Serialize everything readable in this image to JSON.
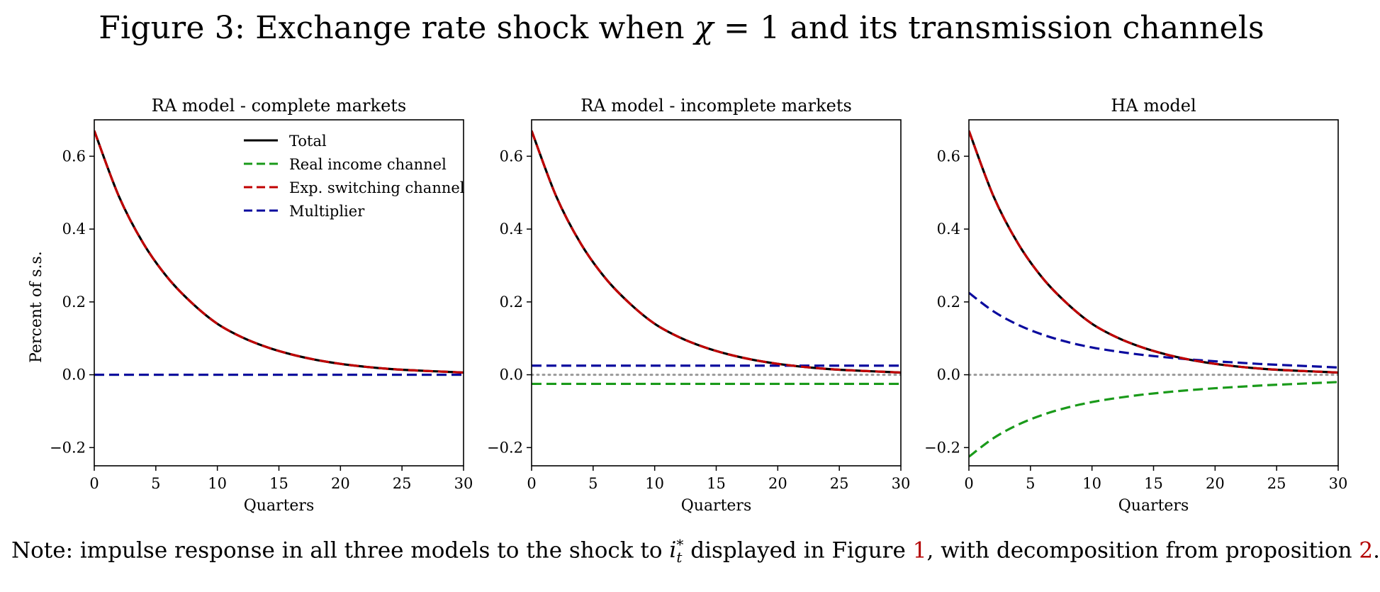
{
  "figure": {
    "title_prefix": "Figure 3: Exchange rate shock when ",
    "title_symbol": "χ",
    "title_equation": " = 1",
    "title_suffix": " and its transmission channels"
  },
  "note": {
    "prefix": "Note: impulse response in all three models to the shock to ",
    "symbol": "i",
    "symbol_sub": "t",
    "symbol_sup": "*",
    "middle": " displayed in Figure ",
    "figure_ref": "1",
    "middle2": ", with decomposition from proposition ",
    "prop_ref": "2",
    "suffix": "."
  },
  "colors": {
    "total": "#000000",
    "real_income": "#1a9a1a",
    "exp_switching": "#c00000",
    "multiplier": "#0a0a9e",
    "zero_line": "#999999",
    "ref_link": "#b30000"
  },
  "chart_data": [
    {
      "type": "line",
      "title": "RA model - complete markets",
      "xlabel": "Quarters",
      "ylabel": "Percent of s.s.",
      "xlim": [
        0,
        30
      ],
      "ylim": [
        -0.25,
        0.7
      ],
      "xticks": [
        0,
        5,
        10,
        15,
        20,
        25,
        30
      ],
      "yticks": [
        -0.2,
        0.0,
        0.2,
        0.4,
        0.6
      ],
      "ytick_labels": [
        "−0.2",
        "0.0",
        "0.2",
        "0.4",
        "0.6"
      ],
      "legend": "upper-center",
      "legend_entries": [
        "Total",
        "Real income channel",
        "Exp. switching channel",
        "Multiplier"
      ],
      "x": [
        0,
        2,
        4,
        6,
        8,
        10,
        12,
        14,
        16,
        18,
        20,
        22,
        24,
        26,
        28,
        30
      ],
      "series": [
        {
          "name": "Total",
          "style": "solid",
          "values": [
            0.67,
            0.49,
            0.36,
            0.265,
            0.195,
            0.14,
            0.103,
            0.076,
            0.056,
            0.041,
            0.03,
            0.022,
            0.016,
            0.012,
            0.009,
            0.006
          ]
        },
        {
          "name": "Real income channel",
          "style": "dashed",
          "values": [
            0.0,
            0.0,
            0.0,
            0.0,
            0.0,
            0.0,
            0.0,
            0.0,
            0.0,
            0.0,
            0.0,
            0.0,
            0.0,
            0.0,
            0.0,
            0.0
          ]
        },
        {
          "name": "Exp. switching channel",
          "style": "dashed",
          "values": [
            0.67,
            0.49,
            0.36,
            0.265,
            0.195,
            0.14,
            0.103,
            0.076,
            0.056,
            0.041,
            0.03,
            0.022,
            0.016,
            0.012,
            0.009,
            0.006
          ]
        },
        {
          "name": "Multiplier",
          "style": "dashed",
          "values": [
            0.0,
            0.0,
            0.0,
            0.0,
            0.0,
            0.0,
            0.0,
            0.0,
            0.0,
            0.0,
            0.0,
            0.0,
            0.0,
            0.0,
            0.0,
            0.0
          ]
        }
      ]
    },
    {
      "type": "line",
      "title": "RA model - incomplete markets",
      "xlabel": "Quarters",
      "ylabel": "",
      "xlim": [
        0,
        30
      ],
      "ylim": [
        -0.25,
        0.7
      ],
      "xticks": [
        0,
        5,
        10,
        15,
        20,
        25,
        30
      ],
      "yticks": [
        -0.2,
        0.0,
        0.2,
        0.4,
        0.6
      ],
      "ytick_labels": [
        "−0.2",
        "0.0",
        "0.2",
        "0.4",
        "0.6"
      ],
      "zero_line": true,
      "x": [
        0,
        2,
        4,
        6,
        8,
        10,
        12,
        14,
        16,
        18,
        20,
        22,
        24,
        26,
        28,
        30
      ],
      "series": [
        {
          "name": "Total",
          "style": "solid",
          "values": [
            0.67,
            0.49,
            0.36,
            0.265,
            0.195,
            0.14,
            0.103,
            0.076,
            0.056,
            0.041,
            0.03,
            0.022,
            0.016,
            0.012,
            0.009,
            0.006
          ]
        },
        {
          "name": "Real income channel",
          "style": "dashed",
          "values": [
            -0.025,
            -0.025,
            -0.025,
            -0.025,
            -0.025,
            -0.025,
            -0.025,
            -0.025,
            -0.025,
            -0.025,
            -0.025,
            -0.025,
            -0.025,
            -0.025,
            -0.025,
            -0.025
          ]
        },
        {
          "name": "Exp. switching channel",
          "style": "dashed",
          "values": [
            0.67,
            0.49,
            0.36,
            0.265,
            0.195,
            0.14,
            0.103,
            0.076,
            0.056,
            0.041,
            0.03,
            0.022,
            0.016,
            0.012,
            0.009,
            0.006
          ]
        },
        {
          "name": "Multiplier",
          "style": "dashed",
          "values": [
            0.025,
            0.025,
            0.025,
            0.025,
            0.025,
            0.025,
            0.025,
            0.025,
            0.025,
            0.025,
            0.025,
            0.025,
            0.025,
            0.025,
            0.025,
            0.025
          ]
        }
      ]
    },
    {
      "type": "line",
      "title": "HA model",
      "xlabel": "Quarters",
      "ylabel": "",
      "xlim": [
        0,
        30
      ],
      "ylim": [
        -0.25,
        0.7
      ],
      "xticks": [
        0,
        5,
        10,
        15,
        20,
        25,
        30
      ],
      "yticks": [
        -0.2,
        0.0,
        0.2,
        0.4,
        0.6
      ],
      "ytick_labels": [
        "−0.2",
        "0.0",
        "0.2",
        "0.4",
        "0.6"
      ],
      "zero_line": true,
      "x": [
        0,
        2,
        4,
        6,
        8,
        10,
        12,
        14,
        16,
        18,
        20,
        22,
        24,
        26,
        28,
        30
      ],
      "series": [
        {
          "name": "Total",
          "style": "solid",
          "values": [
            0.67,
            0.49,
            0.36,
            0.265,
            0.195,
            0.14,
            0.103,
            0.076,
            0.056,
            0.041,
            0.03,
            0.022,
            0.016,
            0.012,
            0.009,
            0.006
          ]
        },
        {
          "name": "Real income channel",
          "style": "dashed",
          "values": [
            -0.225,
            -0.174,
            -0.137,
            -0.11,
            -0.09,
            -0.075,
            -0.064,
            -0.055,
            -0.048,
            -0.042,
            -0.037,
            -0.033,
            -0.029,
            -0.026,
            -0.023,
            -0.02
          ]
        },
        {
          "name": "Exp. switching channel",
          "style": "dashed",
          "values": [
            0.67,
            0.49,
            0.36,
            0.265,
            0.195,
            0.14,
            0.103,
            0.076,
            0.056,
            0.041,
            0.03,
            0.022,
            0.016,
            0.012,
            0.009,
            0.006
          ]
        },
        {
          "name": "Multiplier",
          "style": "dashed",
          "values": [
            0.225,
            0.174,
            0.137,
            0.11,
            0.09,
            0.075,
            0.064,
            0.055,
            0.048,
            0.042,
            0.037,
            0.033,
            0.029,
            0.026,
            0.023,
            0.02
          ]
        }
      ]
    }
  ]
}
